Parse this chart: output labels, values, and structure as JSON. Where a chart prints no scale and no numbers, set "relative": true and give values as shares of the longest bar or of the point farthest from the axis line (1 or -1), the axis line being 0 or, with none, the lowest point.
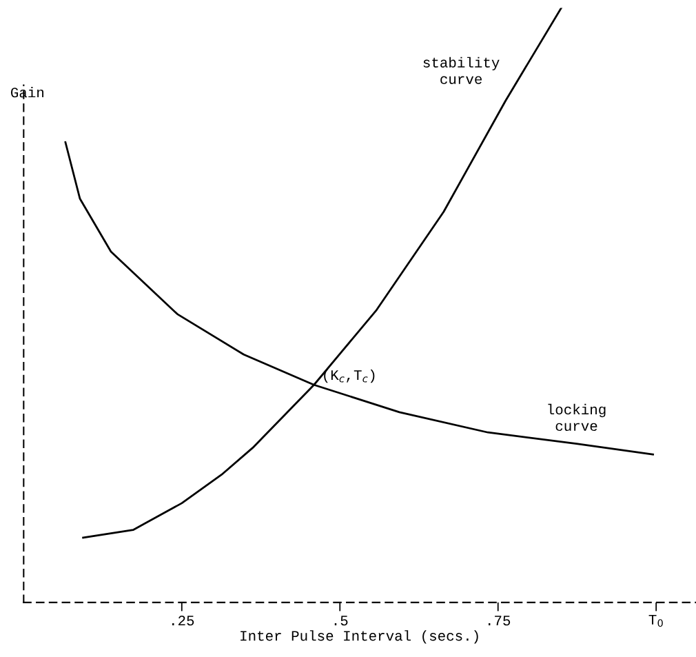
{
  "chart_data": {
    "type": "line",
    "relative": true,
    "ylabel": "Gain",
    "xlabel": "Inter Pulse Interval (secs.)",
    "xlim": [
      0,
      1.063
    ],
    "xticks": [
      {
        "value": 0.25,
        "label": ".25"
      },
      {
        "value": 0.5,
        "label": ".5"
      },
      {
        "value": 0.75,
        "label": ".75"
      },
      {
        "value": 1,
        "label": null
      }
    ],
    "series": [
      {
        "name": "stability curve",
        "color": "#000000",
        "x": [
          0.094,
          0.173,
          0.25,
          0.313,
          0.362,
          0.459,
          0.558,
          0.664,
          0.762,
          0.85
        ],
        "values": [
          0.109,
          0.122,
          0.167,
          0.215,
          0.26,
          0.366,
          0.492,
          0.657,
          0.844,
          1.0
        ]
      },
      {
        "name": "locking curve",
        "color": "#000000",
        "x": [
          0.066,
          0.089,
          0.138,
          0.243,
          0.348,
          0.459,
          0.594,
          0.734,
          0.874,
          0.995
        ],
        "values": [
          0.774,
          0.679,
          0.59,
          0.485,
          0.417,
          0.366,
          0.32,
          0.286,
          0.267,
          0.249
        ]
      }
    ],
    "annotations": [
      {
        "text": "(K$_{c}$,T$_{c}$)",
        "x": 0.459,
        "y": 0.366
      },
      "T$_{0}$"
    ],
    "grid": false,
    "legend": false,
    "marker": "none",
    "line_style": "solid"
  }
}
